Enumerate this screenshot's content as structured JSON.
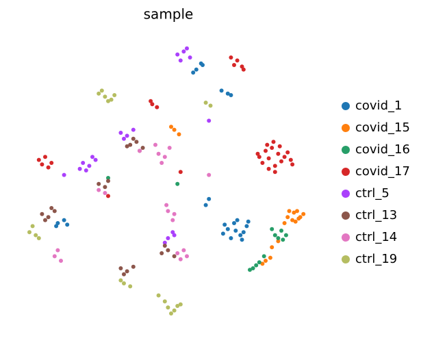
{
  "chart_data": {
    "type": "scatter",
    "title": "sample",
    "xlim": [
      0,
      100
    ],
    "ylim": [
      0,
      100
    ],
    "series": [
      {
        "name": "covid_1",
        "color": "#1f77b4",
        "x": [
          68,
          70,
          72,
          74,
          69,
          71,
          73,
          67,
          70.5,
          72.5,
          66.5,
          74.5,
          58,
          60,
          57,
          59.5,
          66,
          68,
          69,
          14,
          16,
          13.5,
          17,
          62,
          61
        ],
        "y": [
          33,
          35,
          31,
          34,
          30,
          36,
          32,
          34.5,
          32.5,
          29.5,
          31.5,
          35.5,
          86,
          87.5,
          85,
          88,
          79,
          78,
          77.5,
          35,
          36,
          34,
          34.5,
          43,
          41
        ]
      },
      {
        "name": "covid_15",
        "color": "#ff7f0e",
        "x": [
          87,
          89,
          91,
          88.5,
          90,
          86,
          92,
          89.5,
          87.5,
          90.5,
          80,
          81.5,
          79,
          51,
          52.5,
          50,
          82,
          84
        ],
        "y": [
          37,
          38.5,
          37,
          36,
          39,
          35,
          38,
          35.5,
          39,
          36.5,
          22.5,
          23.5,
          21.5,
          66,
          64.5,
          67,
          27,
          29
        ]
      },
      {
        "name": "covid_16",
        "color": "#279e68",
        "x": [
          83,
          85,
          86.5,
          84,
          82,
          85.5,
          76,
          77,
          75,
          78,
          79.5,
          52,
          30
        ],
        "y": [
          31,
          32.5,
          31,
          30,
          33,
          29.5,
          20,
          21,
          19.5,
          22,
          24,
          48,
          50
        ]
      },
      {
        "name": "covid_17",
        "color": "#d62728",
        "x": [
          78,
          80,
          82,
          84,
          86,
          88,
          79,
          81,
          83,
          85,
          87,
          80.5,
          82.5,
          84.5,
          77.5,
          88.5,
          83,
          81,
          69,
          71,
          72.5,
          70,
          73,
          44,
          45.5,
          43.5,
          8,
          10,
          12,
          9,
          11,
          30,
          53
        ],
        "y": [
          57,
          59,
          60,
          58,
          57,
          56,
          55,
          56.5,
          54,
          55.5,
          58.5,
          61,
          62,
          60.5,
          58,
          54.5,
          52,
          53,
          90,
          89,
          87,
          87.5,
          86,
          74.5,
          73.5,
          75.5,
          56,
          57,
          55,
          54.5,
          53.5,
          44,
          52
        ]
      },
      {
        "name": "ctrl_5",
        "color": "#aa40fc",
        "x": [
          52,
          54,
          56,
          53,
          55,
          22,
          24,
          26,
          23,
          25,
          21,
          34,
          36,
          38,
          35,
          49,
          51,
          48,
          50.5,
          62,
          16
        ],
        "y": [
          91,
          92,
          90,
          89,
          93,
          55,
          54,
          56,
          52.5,
          57,
          53,
          65,
          64,
          66,
          63,
          30,
          31,
          28.5,
          32,
          69,
          51
        ]
      },
      {
        "name": "ctrl_13",
        "color": "#8c564b",
        "x": [
          37,
          39,
          41,
          38,
          40,
          36,
          9,
          11,
          13,
          10,
          12,
          47,
          49,
          51,
          48,
          34,
          36,
          38,
          35,
          27,
          29,
          30
        ],
        "y": [
          61,
          62,
          60,
          63,
          59,
          60.5,
          38,
          37,
          39,
          36,
          40,
          25,
          26,
          24,
          27.5,
          20,
          19,
          20.5,
          18,
          48,
          47,
          49
        ]
      },
      {
        "name": "ctrl_14",
        "color": "#e377c2",
        "x": [
          46,
          48,
          49.5,
          47,
          45,
          49,
          51,
          48.5,
          50.5,
          52,
          54,
          55,
          53,
          13,
          15,
          14,
          27,
          29,
          40,
          62
        ],
        "y": [
          58,
          57,
          60,
          55,
          61,
          39,
          38,
          41,
          36,
          25,
          26,
          24,
          23,
          24,
          22.5,
          26,
          46,
          45,
          59,
          51
        ]
      },
      {
        "name": "ctrl_19",
        "color": "#b5bd61",
        "x": [
          27,
          29,
          31,
          28,
          30,
          32,
          49,
          51,
          53,
          48,
          50,
          52,
          46,
          5,
          7,
          6,
          8,
          35,
          37,
          34,
          61,
          62.5
        ],
        "y": [
          78,
          77,
          76,
          79,
          75.5,
          77.5,
          7,
          6,
          8,
          9,
          5,
          7.5,
          11,
          32,
          31,
          34,
          30,
          15,
          14,
          16,
          75,
          74
        ]
      }
    ]
  }
}
